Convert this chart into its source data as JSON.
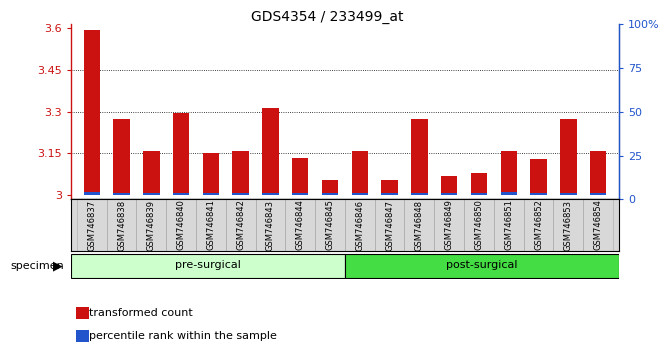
{
  "title": "GDS4354 / 233499_at",
  "samples": [
    "GSM746837",
    "GSM746838",
    "GSM746839",
    "GSM746840",
    "GSM746841",
    "GSM746842",
    "GSM746843",
    "GSM746844",
    "GSM746845",
    "GSM746846",
    "GSM746847",
    "GSM746848",
    "GSM746849",
    "GSM746850",
    "GSM746851",
    "GSM746852",
    "GSM746853",
    "GSM746854"
  ],
  "red_values": [
    3.595,
    3.275,
    3.16,
    3.295,
    3.15,
    3.16,
    3.315,
    3.135,
    3.055,
    3.16,
    3.055,
    3.275,
    3.07,
    3.08,
    3.16,
    3.13,
    3.275,
    3.16
  ],
  "blue_values": [
    0.012,
    0.007,
    0.007,
    0.008,
    0.007,
    0.008,
    0.008,
    0.007,
    0.007,
    0.007,
    0.007,
    0.008,
    0.007,
    0.008,
    0.01,
    0.008,
    0.008,
    0.007
  ],
  "groups": [
    {
      "label": "pre-surgical",
      "count": 9,
      "color": "#aaffaa"
    },
    {
      "label": "post-surgical",
      "count": 9,
      "color": "#44dd44"
    }
  ],
  "ylim_left": [
    2.985,
    3.615
  ],
  "ylim_right": [
    0,
    100
  ],
  "yticks_left": [
    3.0,
    3.15,
    3.3,
    3.45,
    3.6
  ],
  "yticks_right": [
    0,
    25,
    50,
    75,
    100
  ],
  "ytick_labels_left": [
    "3",
    "3.15",
    "3.3",
    "3.45",
    "3.6"
  ],
  "ytick_labels_right": [
    "0",
    "25",
    "50",
    "75",
    "100%"
  ],
  "red_color": "#cc1111",
  "blue_color": "#2255cc",
  "bar_width": 0.55,
  "specimen_label": "specimen",
  "legend_red": "transformed count",
  "legend_blue": "percentile rank within the sample",
  "title_fontsize": 10,
  "tick_fontsize": 8,
  "label_fontsize": 7.5,
  "group_fontsize": 8,
  "legend_fontsize": 8,
  "grid_dotted_ticks": [
    3.15,
    3.3,
    3.45
  ]
}
